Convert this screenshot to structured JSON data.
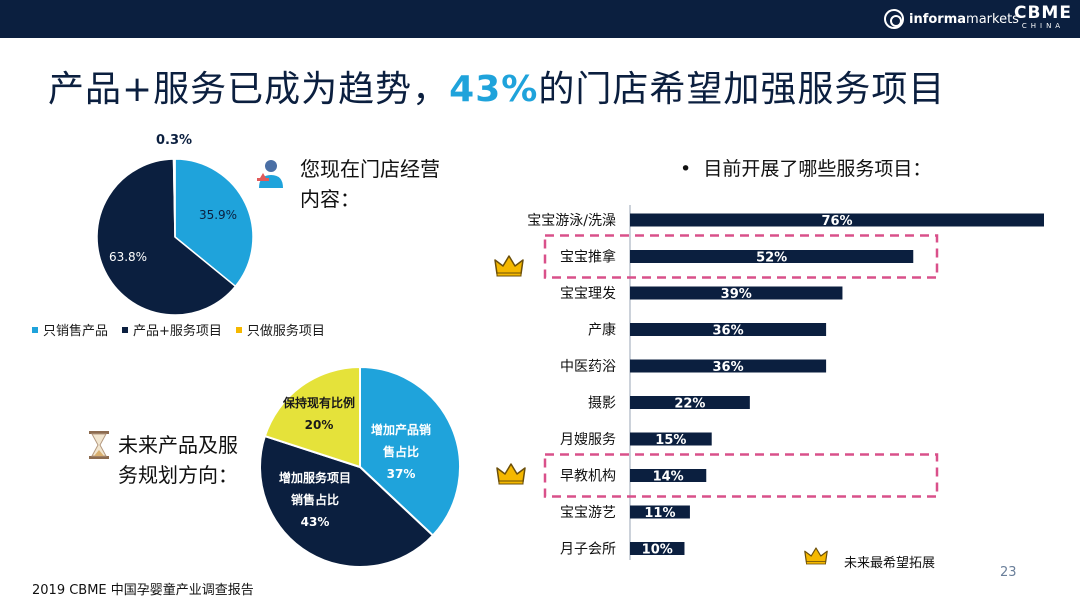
{
  "header": {
    "brand_informa_bold": "informa",
    "brand_informa_light": "markets",
    "brand_cbme": "CBME",
    "brand_cbme_sub": "CHINA"
  },
  "title": {
    "part1": "产品+服务已成为趋势，",
    "highlight": "43%",
    "part2": "的门店希望加强服务项目"
  },
  "colors": {
    "navy": "#0b1f3f",
    "blue": "#1fa3db",
    "yellow": "#e5e23a",
    "gold": "#f5b800",
    "pink_dash": "#d9508a"
  },
  "pie1_question": {
    "line1": "您现在门店经营",
    "line2": "内容："
  },
  "pie2_question": {
    "line1": "未来产品及服",
    "line2": "务规划方向："
  },
  "bar_heading": "目前开展了哪些服务项目：",
  "bar_bullet": "•",
  "legend_note": "未来最希望拓展",
  "page_number": "23",
  "footer": "2019 CBME 中国孕婴童产业调查报告",
  "chart_data": [
    {
      "type": "pie",
      "slices": [
        {
          "name": "只销售产品",
          "value": 35.9,
          "label": "35.9%",
          "color": "#1fa3db"
        },
        {
          "name": "产品+服务项目",
          "value": 63.8,
          "label": "63.8%",
          "color": "#0b1f3f"
        },
        {
          "name": "只做服务项目",
          "value": 0.3,
          "label": "0.3%",
          "color": "#f5b800"
        }
      ],
      "legend": [
        "只销售产品",
        "产品+服务项目",
        "只做服务项目"
      ]
    },
    {
      "type": "pie",
      "slices": [
        {
          "name": "增加产品销售占比",
          "line1": "增加产品销",
          "line2": "售占比",
          "value": 37,
          "label": "37%",
          "color": "#1fa3db"
        },
        {
          "name": "增加服务项目销售占比",
          "line1": "增加服务项目",
          "line2": "销售占比",
          "value": 43,
          "label": "43%",
          "color": "#0b1f3f"
        },
        {
          "name": "保持现有比例",
          "line1": "保持现有比例",
          "line2": "",
          "value": 20,
          "label": "20%",
          "color": "#e5e23a"
        }
      ]
    },
    {
      "type": "bar",
      "orientation": "horizontal",
      "categories": [
        "宝宝游泳/洗澡",
        "宝宝推拿",
        "宝宝理发",
        "产康",
        "中医药浴",
        "摄影",
        "月嫂服务",
        "早教机构",
        "宝宝游艺",
        "月子会所"
      ],
      "values": [
        76,
        52,
        39,
        36,
        36,
        22,
        15,
        14,
        11,
        10
      ],
      "labels": [
        "76%",
        "52%",
        "39%",
        "36%",
        "36%",
        "22%",
        "15%",
        "14%",
        "11%",
        "10%"
      ],
      "highlighted": [
        "宝宝推拿",
        "早教机构"
      ],
      "color": "#0b1f3f"
    }
  ]
}
